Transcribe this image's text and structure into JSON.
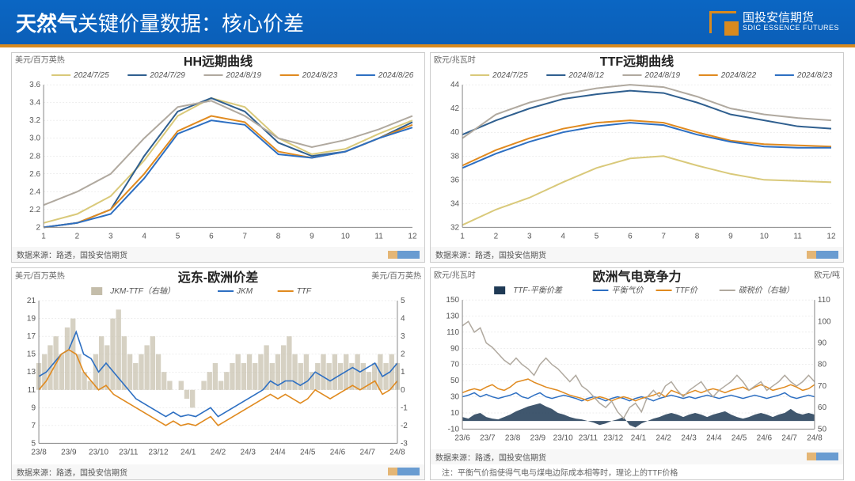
{
  "header": {
    "title_strong": "天然气",
    "title_rest": "关键价量数据：核心价差",
    "logo_top": "国投安信期货",
    "logo_sub": "SDIC ESSENCE FUTURES"
  },
  "colors": {
    "c1": "#d9c97a",
    "c2": "#2f5f8f",
    "c3": "#b0a99f",
    "c4": "#e08a1f",
    "c5": "#2d6fc2",
    "bar": "#c4bdaa",
    "area": "#1f3a55"
  },
  "chart1": {
    "title": "HH远期曲线",
    "y_label": "美元/百万英热",
    "source": "数据来源：路透，国投安信期货",
    "x_ticks": [
      1,
      2,
      3,
      4,
      5,
      6,
      7,
      8,
      9,
      10,
      11,
      12
    ],
    "y_min": 2,
    "y_max": 3.6,
    "y_step": 0.2,
    "legend": [
      "2024/7/25",
      "2024/7/29",
      "2024/8/19",
      "2024/8/23",
      "2024/8/26"
    ],
    "series": [
      [
        2.05,
        2.15,
        2.35,
        2.75,
        3.25,
        3.45,
        3.35,
        3.0,
        2.82,
        2.88,
        3.05,
        3.2
      ],
      [
        2.0,
        2.05,
        2.2,
        2.8,
        3.3,
        3.45,
        3.3,
        2.95,
        2.8,
        2.85,
        3.0,
        3.18
      ],
      [
        2.25,
        2.4,
        2.6,
        3.0,
        3.35,
        3.42,
        3.25,
        3.0,
        2.9,
        2.98,
        3.1,
        3.25
      ],
      [
        2.0,
        2.05,
        2.2,
        2.6,
        3.08,
        3.25,
        3.18,
        2.85,
        2.78,
        2.85,
        3.0,
        3.15
      ],
      [
        2.0,
        2.05,
        2.15,
        2.55,
        3.05,
        3.2,
        3.15,
        2.82,
        2.78,
        2.85,
        3.0,
        3.12
      ]
    ]
  },
  "chart2": {
    "title": "TTF远期曲线",
    "y_label": "欧元/兆瓦时",
    "source": "数据来源：路透，国投安信期货",
    "x_ticks": [
      1,
      2,
      3,
      4,
      5,
      6,
      7,
      8,
      9,
      10,
      11,
      12
    ],
    "y_min": 32,
    "y_max": 44,
    "y_step": 2,
    "legend": [
      "2024/7/25",
      "2024/8/12",
      "2024/8/19",
      "2024/8/22",
      "2024/8/23"
    ],
    "series": [
      [
        32.2,
        33.5,
        34.5,
        35.8,
        37.0,
        37.8,
        38.0,
        37.2,
        36.5,
        36.0,
        35.9,
        35.8
      ],
      [
        39.8,
        41.0,
        42.0,
        42.8,
        43.2,
        43.5,
        43.3,
        42.5,
        41.5,
        41.0,
        40.5,
        40.3
      ],
      [
        39.5,
        41.5,
        42.5,
        43.2,
        43.7,
        44.0,
        43.8,
        43.0,
        42.0,
        41.5,
        41.2,
        41.0
      ],
      [
        37.2,
        38.5,
        39.5,
        40.3,
        40.8,
        41.0,
        40.8,
        40.0,
        39.3,
        39.0,
        38.9,
        38.8
      ],
      [
        37.0,
        38.2,
        39.2,
        40.0,
        40.5,
        40.8,
        40.6,
        39.8,
        39.2,
        38.8,
        38.7,
        38.7
      ]
    ]
  },
  "chart3": {
    "title": "远东-欧洲价差",
    "y_label_l": "美元/百万英热",
    "y_label_r": "美元/百万英热",
    "source": "数据来源：路透，国投安信期货",
    "x_ticks": [
      "23/8",
      "23/9",
      "23/10",
      "23/11",
      "23/12",
      "24/1",
      "24/2",
      "24/3",
      "24/4",
      "24/5",
      "24/6",
      "24/7",
      "24/8"
    ],
    "yl_min": 5,
    "yl_max": 21,
    "yl_step": 2,
    "yr_min": -3,
    "yr_max": 5,
    "yr_step": 1,
    "legend": [
      "JKM-TTF（右轴）",
      "JKM",
      "TTF"
    ],
    "bars": [
      1.5,
      2,
      2.5,
      3,
      2,
      3.5,
      4,
      2,
      1,
      0.5,
      2,
      3,
      2.5,
      4,
      4.5,
      3,
      2,
      1.5,
      2,
      2.5,
      3,
      2,
      1,
      0.5,
      0,
      0.5,
      -0.5,
      -1,
      0,
      0.5,
      1,
      1.5,
      0.5,
      1,
      1.5,
      2,
      1.5,
      2,
      1.5,
      2,
      2.5,
      1.5,
      2,
      2.5,
      3,
      2,
      1.5,
      2,
      1,
      1.5,
      2,
      1.5,
      2,
      1.5,
      2,
      1.5,
      2,
      1.5,
      1,
      1.5,
      2,
      1.5,
      2,
      1.5
    ],
    "jkm": [
      12.5,
      13,
      14,
      15,
      15.5,
      17.5,
      15,
      14.5,
      13,
      14,
      13,
      12,
      11,
      10,
      9.5,
      9,
      8.5,
      8,
      8.5,
      8,
      8.2,
      8,
      8.5,
      9,
      8,
      8.5,
      9,
      9.5,
      10,
      10.5,
      11,
      12,
      11.5,
      12,
      12,
      11.5,
      12,
      13,
      12.5,
      12,
      12.5,
      13,
      13.5,
      13,
      13.5,
      14,
      12.5,
      13,
      14
    ],
    "ttf": [
      11,
      12,
      13.5,
      15,
      15.5,
      15,
      13,
      12,
      11,
      11.5,
      10.5,
      10,
      9.5,
      9,
      8.5,
      8,
      7.5,
      7,
      7.5,
      7,
      7.2,
      7,
      7.5,
      8,
      7,
      7.5,
      8,
      8.5,
      9,
      9.5,
      10,
      10.5,
      10,
      10.5,
      10,
      9.5,
      10,
      11,
      10.5,
      10,
      10.5,
      11,
      11.5,
      11,
      11.5,
      12,
      10.5,
      11,
      12
    ]
  },
  "chart4": {
    "title": "欧洲气电竞争力",
    "y_label_l": "欧元/兆瓦时",
    "y_label_r": "欧元/吨",
    "source": "数据来源：路透，国投安信期货",
    "note": "注：平衡气价指使得气电与煤电边际成本相等时，理论上的TTF价格",
    "x_ticks": [
      "23/6",
      "23/7",
      "23/8",
      "23/9",
      "23/10",
      "23/11",
      "23/12",
      "24/1",
      "24/2",
      "24/3",
      "24/4",
      "24/5",
      "24/6",
      "24/7",
      "24/8"
    ],
    "yl_min": -10,
    "yl_max": 150,
    "yl_step": 20,
    "yr_min": 50,
    "yr_max": 110,
    "yr_step": 10,
    "legend": [
      "TTF-平衡价差",
      "平衡气价",
      "TTF价",
      "碳税价（右轴）"
    ],
    "diff": [
      5,
      3,
      8,
      10,
      5,
      3,
      2,
      5,
      8,
      12,
      15,
      18,
      20,
      22,
      18,
      15,
      10,
      8,
      5,
      3,
      2,
      0,
      -2,
      -5,
      -3,
      0,
      2,
      5,
      -5,
      -8,
      -3,
      0,
      3,
      5,
      8,
      10,
      8,
      5,
      8,
      10,
      8,
      5,
      8,
      10,
      12,
      8,
      5,
      3,
      5,
      8,
      10,
      8,
      5,
      8,
      10,
      15,
      10,
      8,
      10,
      8
    ],
    "balance": [
      30,
      32,
      35,
      30,
      33,
      30,
      28,
      30,
      32,
      35,
      30,
      28,
      32,
      35,
      30,
      28,
      30,
      32,
      30,
      28,
      25,
      28,
      30,
      28,
      25,
      28,
      30,
      28,
      25,
      28,
      30,
      28,
      25,
      28,
      30,
      32,
      30,
      28,
      30,
      28,
      30,
      32,
      30,
      28,
      30,
      32,
      30,
      28,
      30,
      32,
      30,
      28,
      30,
      32,
      35,
      30,
      28,
      30,
      32,
      30
    ],
    "ttf": [
      35,
      38,
      40,
      38,
      42,
      45,
      40,
      38,
      42,
      48,
      50,
      52,
      48,
      45,
      42,
      40,
      38,
      35,
      32,
      30,
      28,
      25,
      28,
      30,
      28,
      25,
      28,
      30,
      28,
      25,
      28,
      30,
      32,
      35,
      30,
      38,
      35,
      32,
      35,
      38,
      35,
      38,
      40,
      38,
      35,
      38,
      40,
      42,
      38,
      42,
      45,
      42,
      38,
      40,
      42,
      45,
      42,
      38,
      40,
      45
    ],
    "carbon": [
      98,
      100,
      95,
      97,
      90,
      88,
      85,
      82,
      80,
      83,
      80,
      78,
      75,
      80,
      83,
      80,
      78,
      75,
      72,
      75,
      70,
      68,
      65,
      62,
      60,
      63,
      58,
      55,
      60,
      62,
      58,
      65,
      68,
      65,
      70,
      72,
      68,
      65,
      68,
      70,
      72,
      68,
      65,
      68,
      70,
      72,
      75,
      72,
      68,
      70,
      72,
      68,
      70,
      72,
      75,
      72,
      70,
      72,
      75,
      72
    ]
  }
}
